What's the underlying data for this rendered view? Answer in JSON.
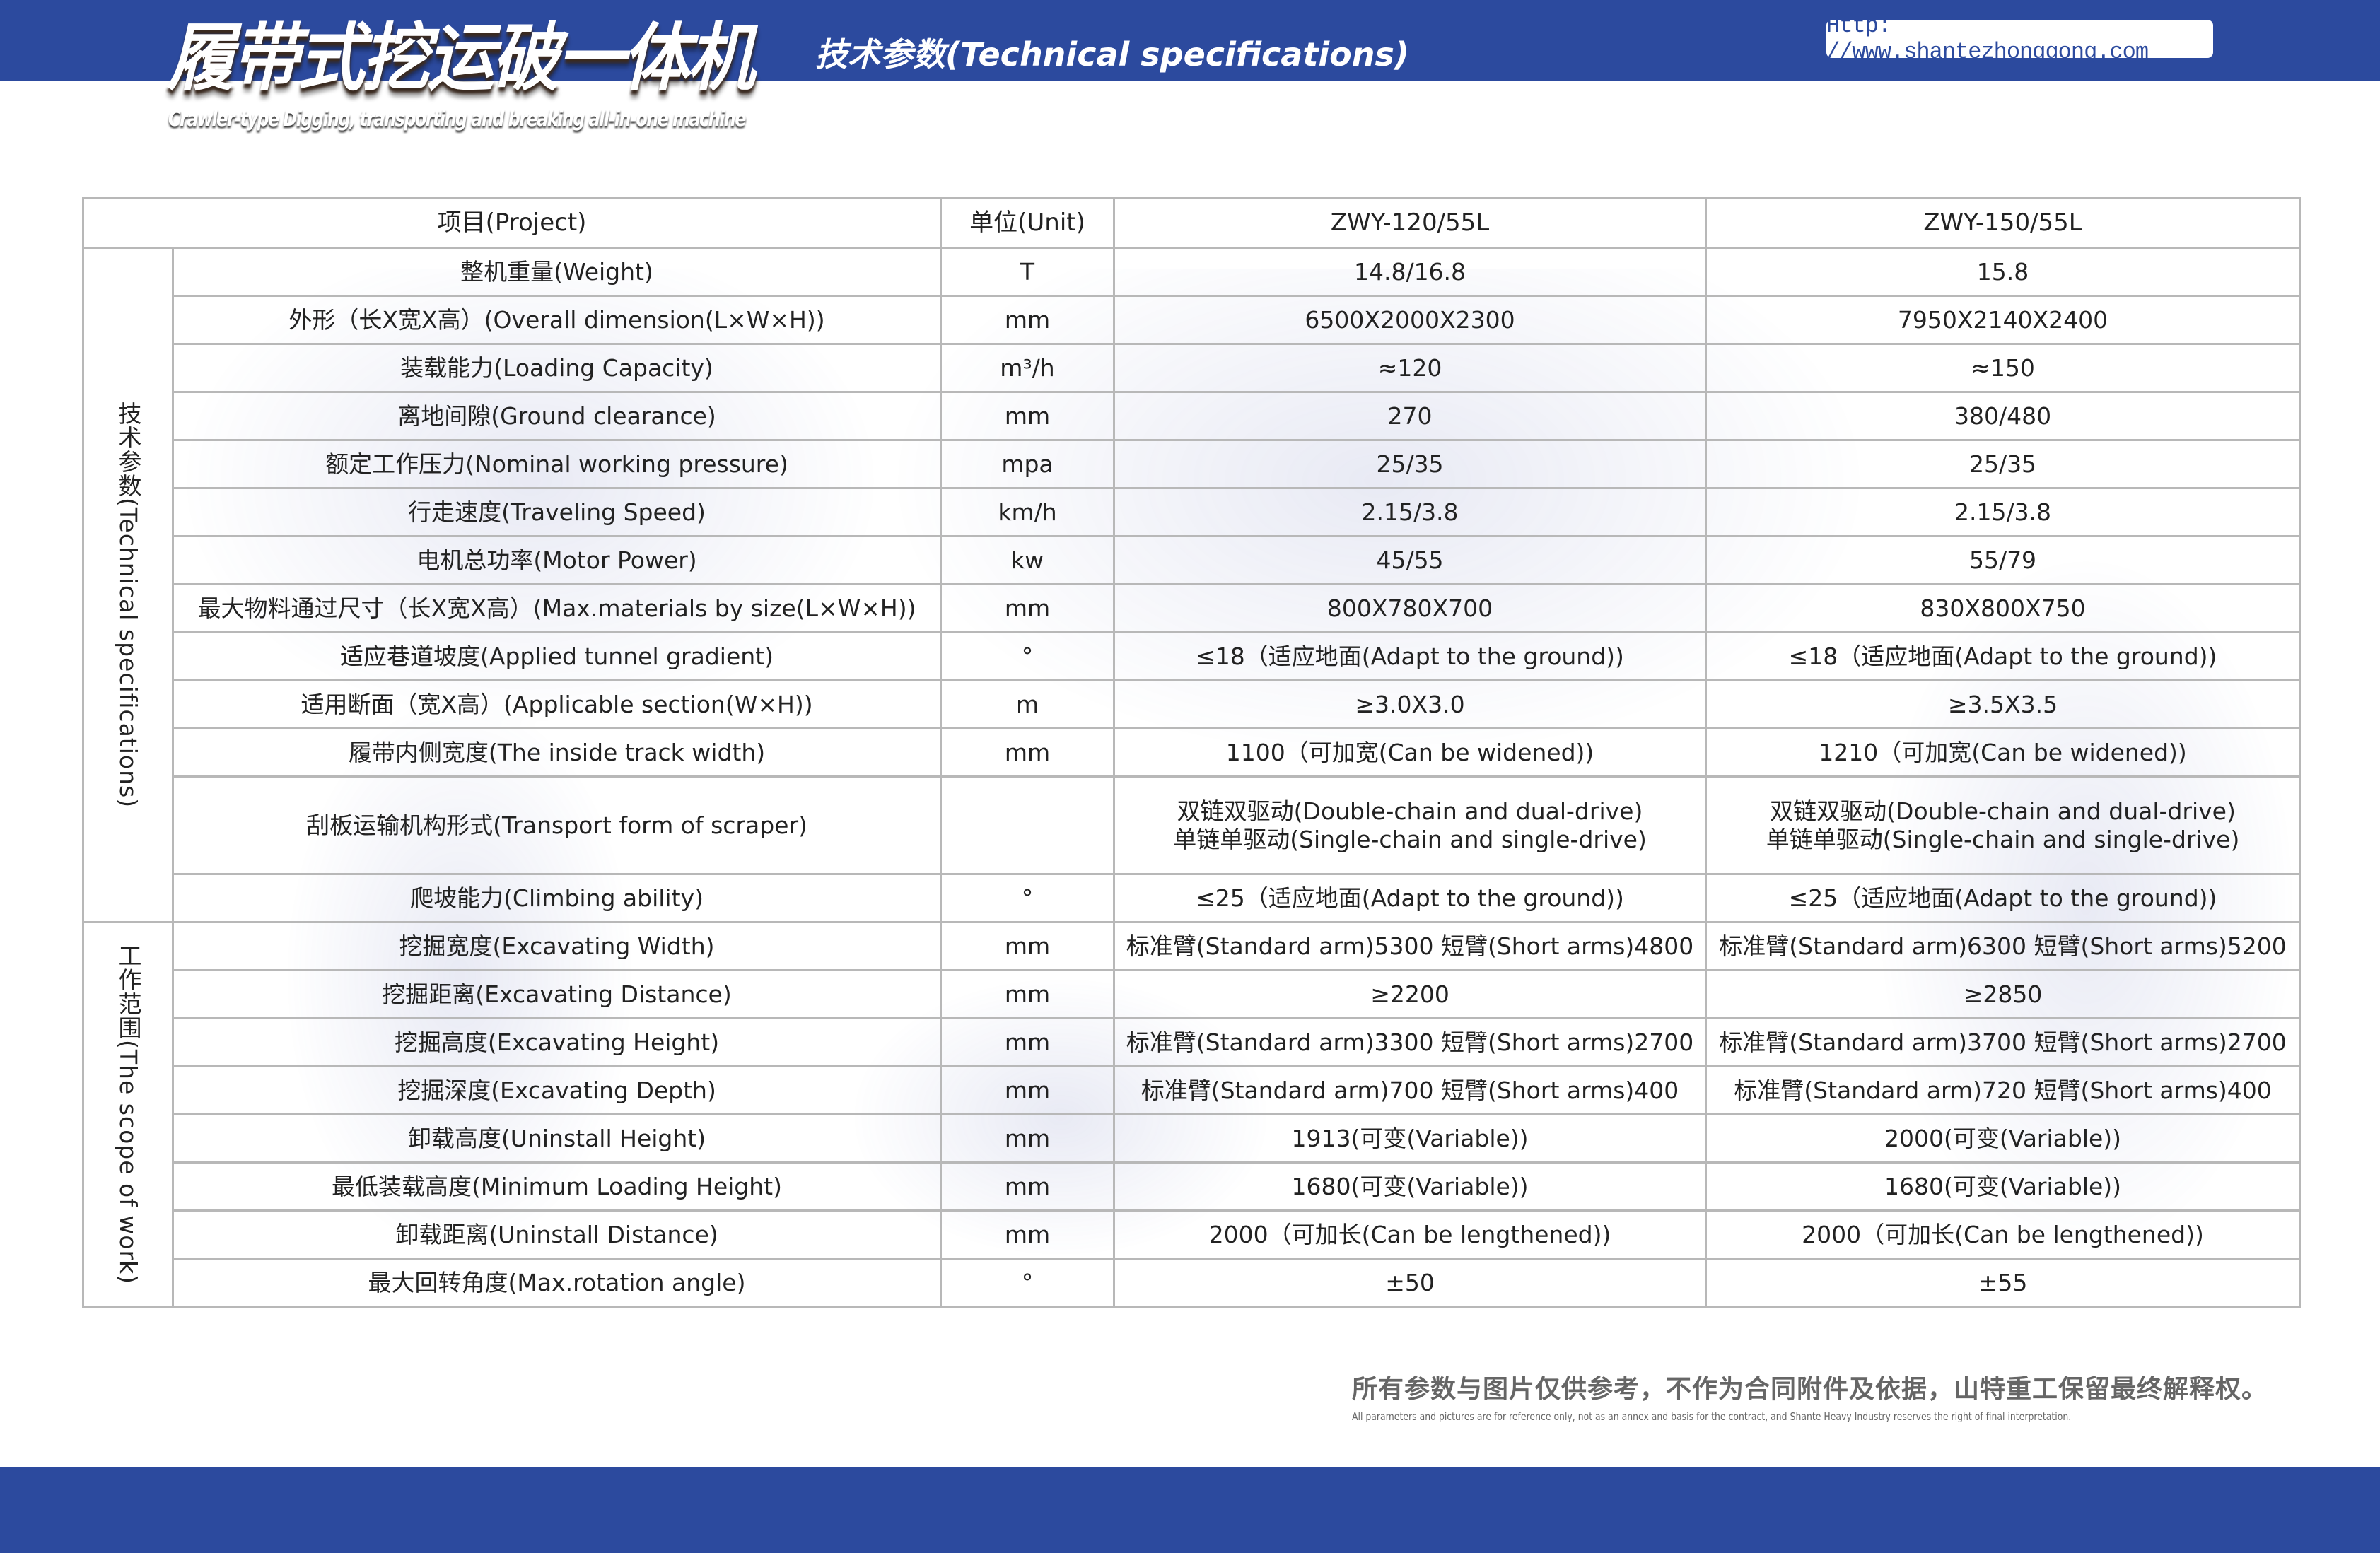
{
  "header": {
    "title_cn": "履带式挖运破一体机",
    "title_en": "Crawler-type Digging, transporting and breaking all-in-one machine",
    "subtitle": "技术参数(Technical specifications)",
    "url": "Http: //www.shantezhonggong.com"
  },
  "table": {
    "headers": [
      "项目(Project)",
      "单位(Unit)",
      "ZWY-120/55L",
      "ZWY-150/55L"
    ],
    "sections": [
      {
        "label": "技术参数(Technical specifications)",
        "rows": [
          [
            "整机重量(Weight)",
            "T",
            "14.8/16.8",
            "15.8"
          ],
          [
            "外形（长X宽X高）(Overall dimension(L×W×H))",
            "mm",
            "6500X2000X2300",
            "7950X2140X2400"
          ],
          [
            "装载能力(Loading Capacity)",
            "m³/h",
            "≈120",
            "≈150"
          ],
          [
            "离地间隙(Ground clearance)",
            "mm",
            "270",
            "380/480"
          ],
          [
            "额定工作压力(Nominal working pressure)",
            "mpa",
            "25/35",
            "25/35"
          ],
          [
            "行走速度(Traveling Speed)",
            "km/h",
            "2.15/3.8",
            "2.15/3.8"
          ],
          [
            "电机总功率(Motor Power)",
            "kw",
            "45/55",
            "55/79"
          ],
          [
            "最大物料通过尺寸（长X宽X高）(Max.materials by size(L×W×H))",
            "mm",
            "800X780X700",
            "830X800X750"
          ],
          [
            "适应巷道坡度(Applied tunnel gradient)",
            "°",
            "≤18（适应地面(Adapt to the ground))",
            "≤18（适应地面(Adapt to the ground))"
          ],
          [
            "适用断面（宽X高）(Applicable section(W×H))",
            "m",
            "≥3.0X3.0",
            "≥3.5X3.5"
          ],
          [
            "履带内侧宽度(The inside track width)",
            "mm",
            "1100（可加宽(Can be widened))",
            "1210（可加宽(Can be widened))"
          ],
          [
            "刮板运输机构形式(Transport form of scraper)",
            "",
            "双链双驱动(Double-chain and dual-drive)\n单链单驱动(Single-chain and single-drive)",
            "双链双驱动(Double-chain and dual-drive)\n单链单驱动(Single-chain and single-drive)"
          ],
          [
            "爬坡能力(Climbing ability)",
            "°",
            "≤25（适应地面(Adapt to the ground))",
            "≤25（适应地面(Adapt to the ground))"
          ]
        ]
      },
      {
        "label": "工作范围(The scope of work)",
        "rows": [
          [
            "挖掘宽度(Excavating Width)",
            "mm",
            "标准臂(Standard arm)5300 短臂(Short arms)4800",
            "标准臂(Standard arm)6300 短臂(Short arms)5200"
          ],
          [
            "挖掘距离(Excavating Distance)",
            "mm",
            "≥2200",
            "≥2850"
          ],
          [
            "挖掘高度(Excavating Height)",
            "mm",
            "标准臂(Standard arm)3300 短臂(Short arms)2700",
            "标准臂(Standard arm)3700 短臂(Short arms)2700"
          ],
          [
            "挖掘深度(Excavating Depth)",
            "mm",
            "标准臂(Standard arm)700 短臂(Short arms)400",
            "标准臂(Standard arm)720 短臂(Short arms)400"
          ],
          [
            "卸载高度(Uninstall Height)",
            "mm",
            "1913(可变(Variable))",
            "2000(可变(Variable))"
          ],
          [
            "最低装载高度(Minimum Loading Height)",
            "mm",
            "1680(可变(Variable))",
            "1680(可变(Variable))"
          ],
          [
            "卸载距离(Uninstall Distance)",
            "mm",
            "2000（可加长(Can be lengthened))",
            "2000（可加长(Can be lengthened))"
          ],
          [
            "最大回转角度(Max.rotation angle)",
            "°",
            "±50",
            "±55"
          ]
        ]
      }
    ]
  },
  "footer": {
    "disclaimer_cn": "所有参数与图片仅供参考，不作为合同附件及依据，山特重工保留最终解释权。",
    "disclaimer_en": "All parameters and pictures are for reference only, not as an annex and basis for the contract, and Shante Heavy Industry reserves the right of final interpretation."
  },
  "colors": {
    "brand": "#2c4a9e"
  }
}
